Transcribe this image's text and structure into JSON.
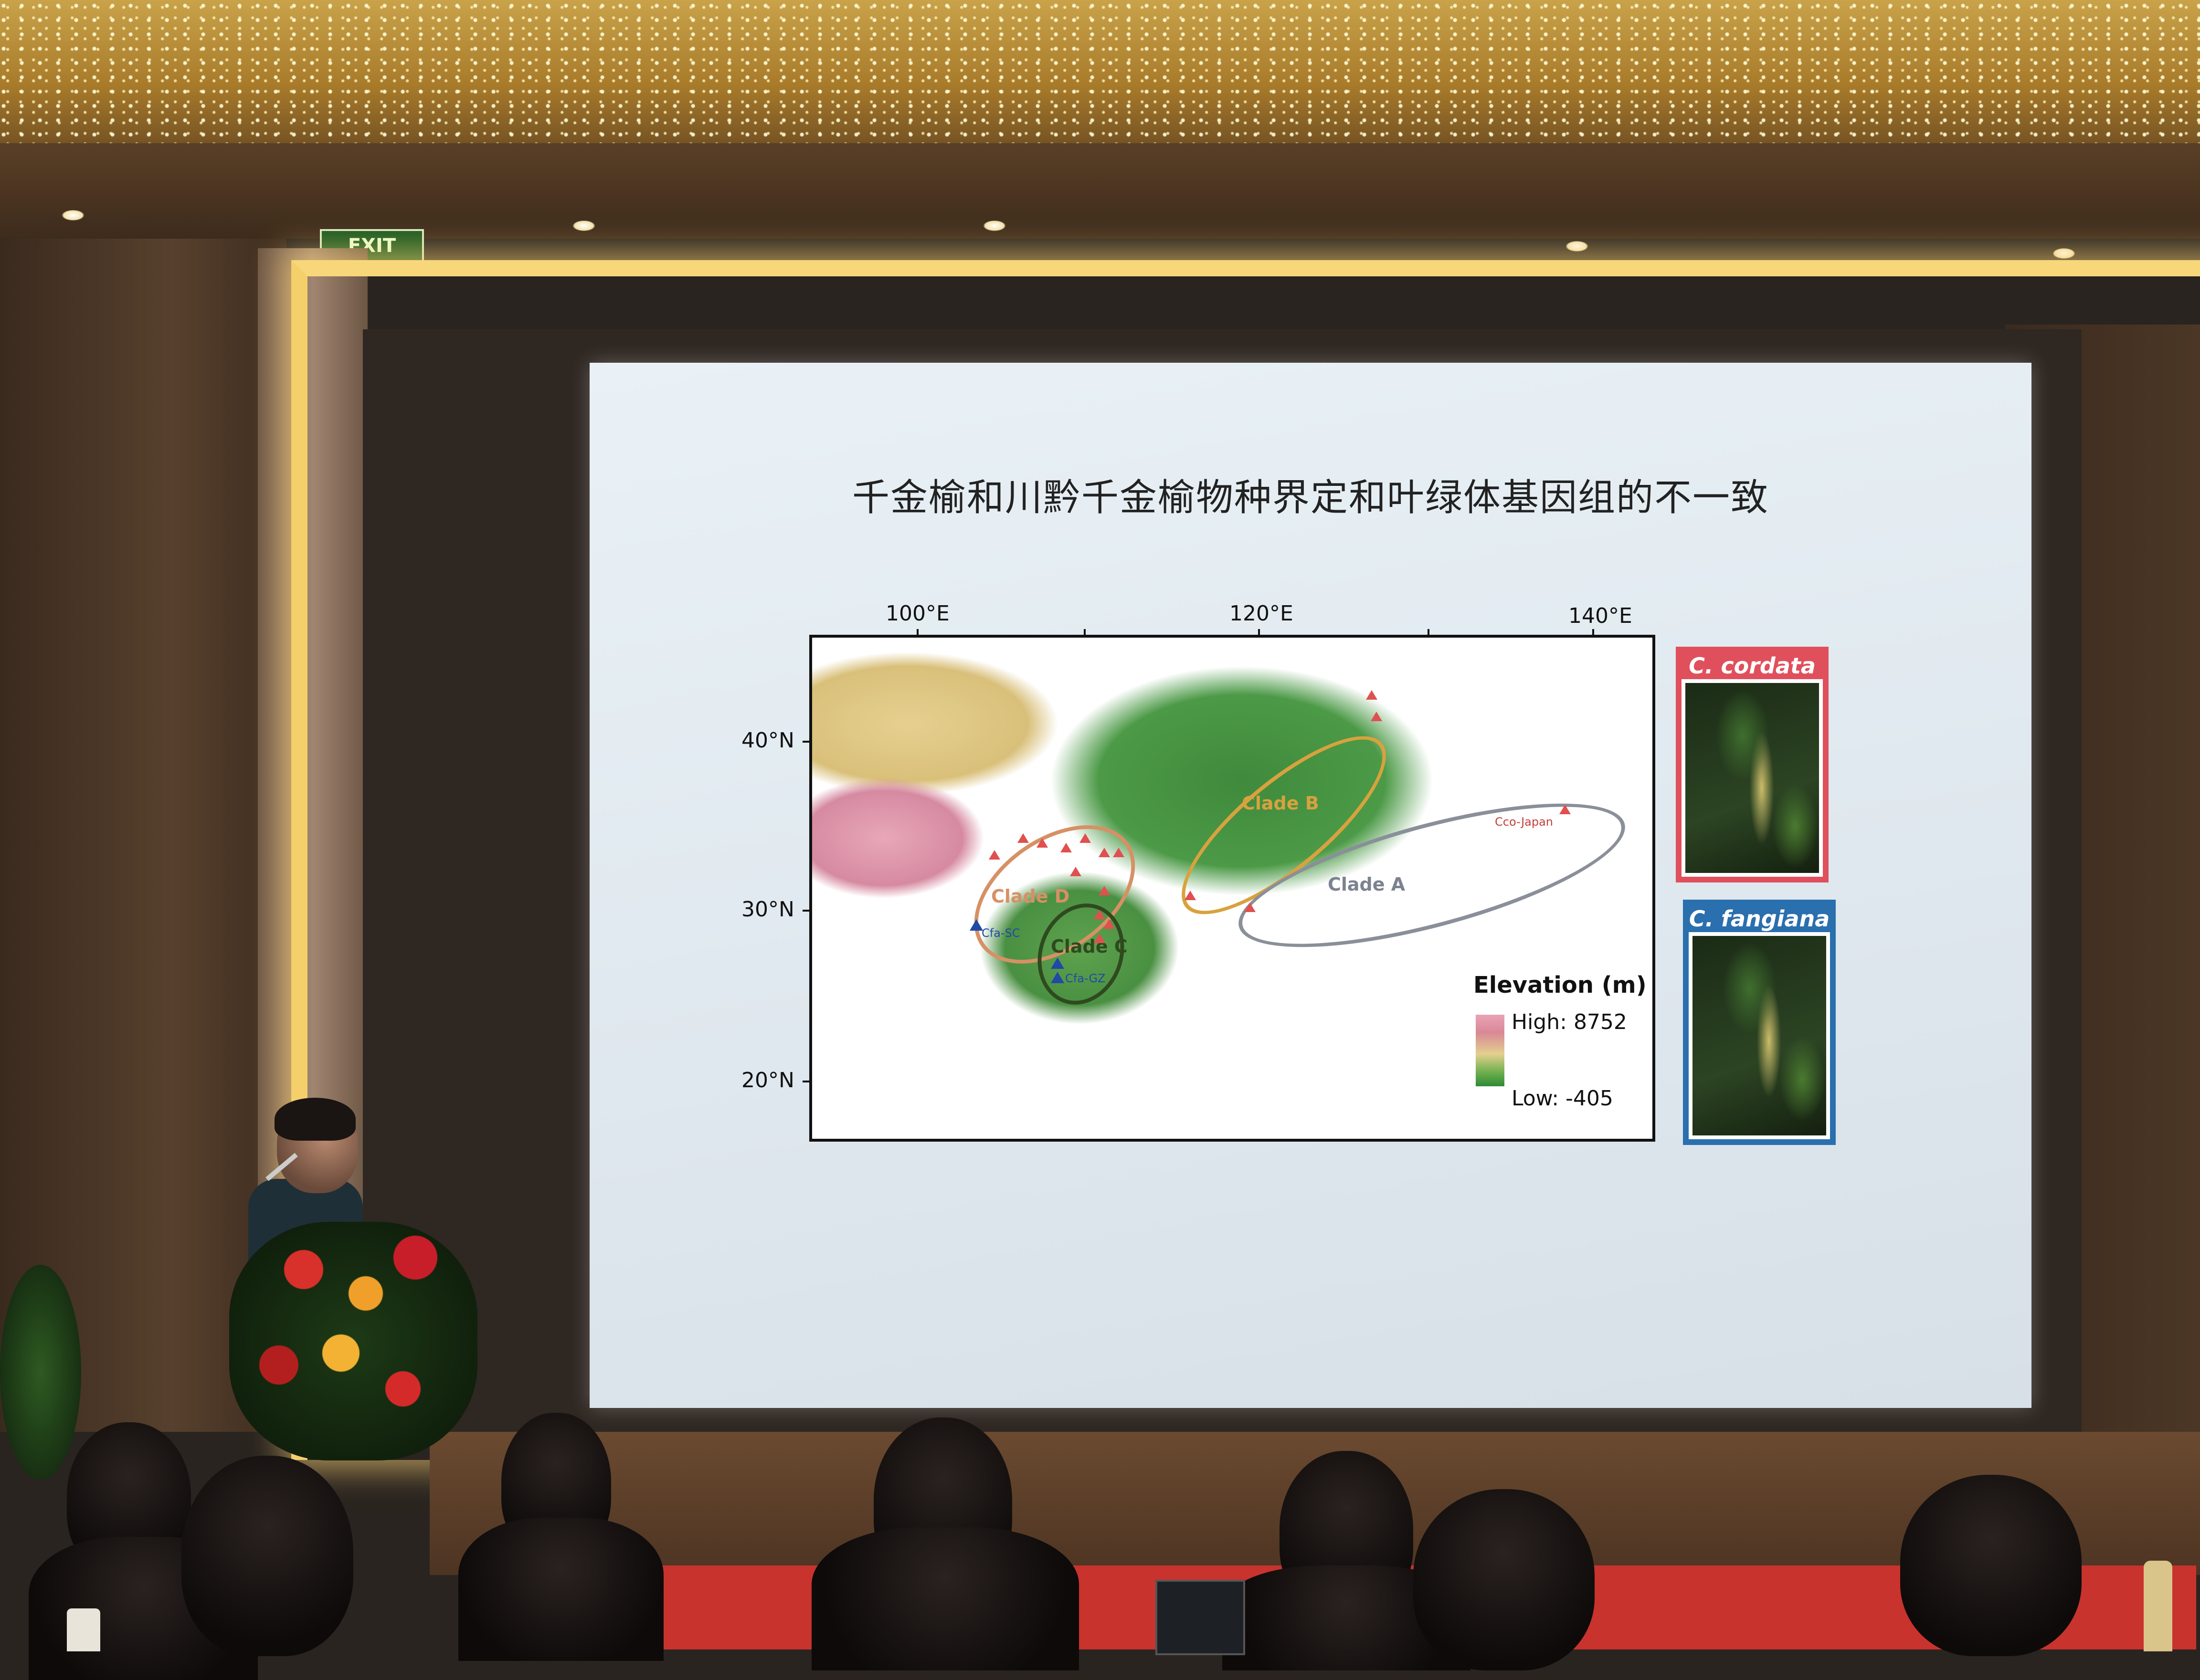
{
  "slide": {
    "title": "千金榆和川黔千金榆物种界定和叶绿体基因组的不一致"
  },
  "map": {
    "lon_ticks": [
      "100°E",
      "120°E",
      "140°E"
    ],
    "lat_ticks": [
      "40°N",
      "30°N",
      "20°N"
    ],
    "clades": [
      {
        "name": "Clade A",
        "color": "#8a8f99"
      },
      {
        "name": "Clade B",
        "color": "#d8a23e"
      },
      {
        "name": "Clade C",
        "color": "#2f4a1f"
      },
      {
        "name": "Clade D",
        "color": "#d79065"
      }
    ],
    "sites": {
      "cco_japan": "Cco-Japan",
      "cfa_sc": "Cfa-SC",
      "cfa_gz": "Cfa-GZ"
    },
    "legend": {
      "title": "Elevation (m)",
      "high": "High: 8752",
      "low": "Low: -405"
    }
  },
  "species": [
    {
      "name": "C. cordata",
      "color": "#e0505c"
    },
    {
      "name": "C. fangiana",
      "color": "#2a6fae"
    }
  ],
  "room": {
    "exit_sign": "EXIT"
  }
}
